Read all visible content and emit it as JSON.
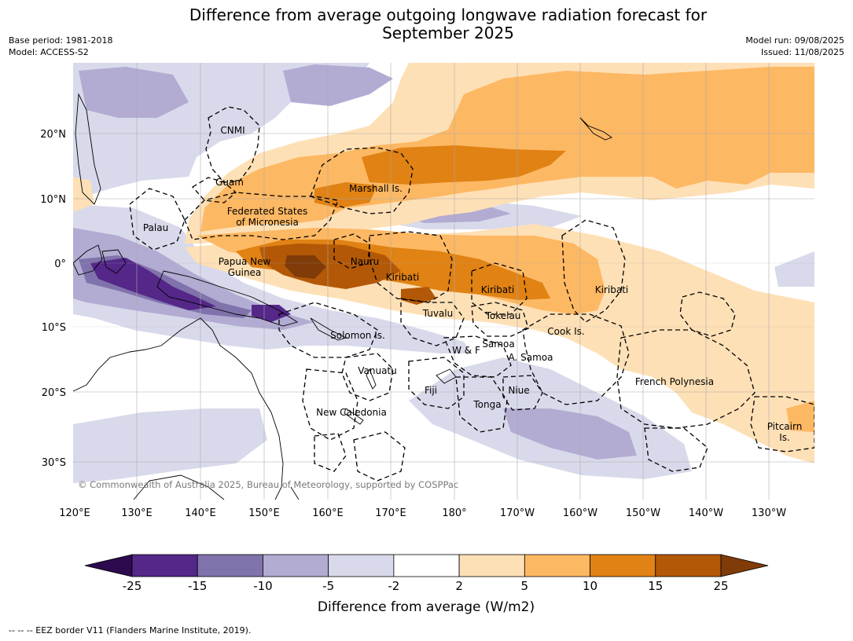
{
  "title_line1": "Difference from average outgoing longwave radiation forecast for",
  "title_line2": "September 2025",
  "meta_left": {
    "base_period": "Base period: 1981-2018",
    "model": "Model: ACCESS-S2"
  },
  "meta_right": {
    "model_run": "Model run: 09/08/2025",
    "issued": "Issued: 11/08/2025"
  },
  "map": {
    "lon_ticks": [
      "120°E",
      "130°E",
      "140°E",
      "150°E",
      "160°E",
      "170°E",
      "180°",
      "170°W",
      "160°W",
      "150°W",
      "140°W",
      "130°W"
    ],
    "lat_ticks": [
      "20°N",
      "10°N",
      "0°",
      "10°S",
      "20°S",
      "30°S"
    ],
    "region_labels": {
      "cnmi": "CNMI",
      "guam": "Guam",
      "marshall": "Marshall Is.",
      "fsm1": "Federated States",
      "fsm2": "of Micronesia",
      "palau": "Palau",
      "png1": "Papua New",
      "png2": "Guinea",
      "nauru": "Nauru",
      "kiribati_w": "Kiribati",
      "kiribati_c": "Kiribati",
      "kiribati_e": "Kiribati",
      "tuvalu": "Tuvalu",
      "tokelau": "Tokelau",
      "cook": "Cook Is.",
      "solomon": "Solomon Is.",
      "samoa": "Samoa",
      "wf": "W & F",
      "asamoa": "A. Samoa",
      "vanuatu": "Vanuatu",
      "fiji": "Fiji",
      "niue": "Niue",
      "tonga": "Tonga",
      "newcal": "New Caledonia",
      "frpoly": "French Polynesia",
      "pitcairn1": "Pitcairn",
      "pitcairn2": "Is."
    },
    "copyright": "© Commonwealth of Australia 2025, Bureau of Meteorology, supported by COSPPac"
  },
  "colorbar": {
    "labels": [
      "-25",
      "-15",
      "-10",
      "-5",
      "-2",
      "2",
      "5",
      "10",
      "15",
      "25"
    ],
    "colors": {
      "below_-25": "#2d0a4e",
      "-25_-15": "#542788",
      "-15_-10": "#8073ac",
      "-10_-5": "#b2abd2",
      "-5_-2": "#d8daeb",
      "-2_2": "#ffffff",
      "2_5": "#fee0b6",
      "5_10": "#fdb863",
      "10_15": "#e08214",
      "15_25": "#b35806",
      "above_25": "#7f3b08"
    },
    "title": "Difference from average (W/m2)"
  },
  "footnote": "--  --  -- EEZ border V11 (Flanders Marine Institute, 2019)."
}
